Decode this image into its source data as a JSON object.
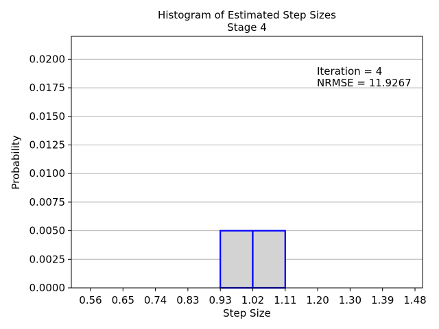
{
  "chart_data": {
    "type": "bar",
    "title": "Histogram of Estimated Step Sizes",
    "subtitle": "Stage 4",
    "xlabel": "Step Size",
    "ylabel": "Probability",
    "categories": [
      "0.56",
      "0.65",
      "0.74",
      "0.83",
      "0.93",
      "1.02",
      "1.11",
      "1.20",
      "1.30",
      "1.39",
      "1.48"
    ],
    "bins": [
      {
        "left": "0.56",
        "right": "0.65",
        "value": 0.0
      },
      {
        "left": "0.65",
        "right": "0.74",
        "value": 0.0
      },
      {
        "left": "0.74",
        "right": "0.83",
        "value": 0.0
      },
      {
        "left": "0.83",
        "right": "0.93",
        "value": 0.0
      },
      {
        "left": "0.93",
        "right": "1.02",
        "value": 0.005
      },
      {
        "left": "1.02",
        "right": "1.11",
        "value": 0.005
      },
      {
        "left": "1.11",
        "right": "1.20",
        "value": 0.0
      },
      {
        "left": "1.20",
        "right": "1.30",
        "value": 0.0
      },
      {
        "left": "1.30",
        "right": "1.39",
        "value": 0.0
      },
      {
        "left": "1.39",
        "right": "1.48",
        "value": 0.0
      }
    ],
    "yticks": [
      "0.0000",
      "0.0025",
      "0.0050",
      "0.0075",
      "0.0100",
      "0.0125",
      "0.0150",
      "0.0175",
      "0.0200"
    ],
    "ylim": [
      0,
      0.022
    ],
    "grid": "horizontal",
    "annotations": [
      "Iteration = 4",
      "NRMSE = 11.9267"
    ],
    "colors": {
      "bar_fill": "#d3d3d3",
      "bar_edge": "#0000ff",
      "grid": "#b0b0b0"
    }
  }
}
